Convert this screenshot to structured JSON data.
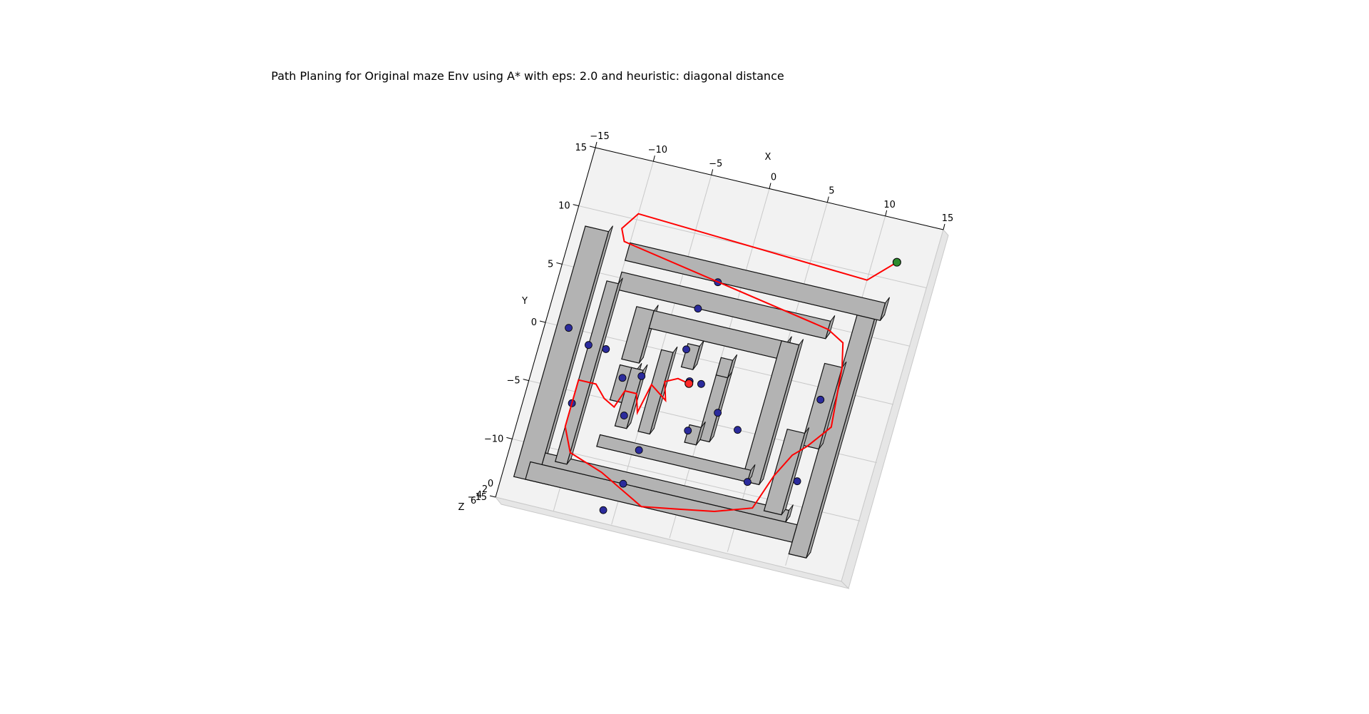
{
  "chart_data": {
    "type": "3d-maze-path",
    "title": "Path Planing for Original maze Env using A* with eps: 2.0 and heuristic: diagonal distance",
    "xlabel": "X",
    "ylabel": "Y",
    "zlabel": "Z",
    "xlim": [
      -15,
      15
    ],
    "ylim": [
      -15,
      15
    ],
    "xticks": [
      "−15",
      "−10",
      "−5",
      "0",
      "5",
      "10",
      "15"
    ],
    "yticks": [
      "15",
      "10",
      "5",
      "0",
      "−5",
      "−10",
      "−15"
    ],
    "zticks": [
      "0",
      "2",
      "4",
      "6"
    ],
    "colors": {
      "path": "#ff0000",
      "start": "#ff2a2a",
      "goal": "#2e8b2e",
      "blocks": "#b3b3b3",
      "waypoints": "#2b2b9c",
      "pane": "#f2f2f2",
      "grid": "#c9c9c9"
    }
  }
}
